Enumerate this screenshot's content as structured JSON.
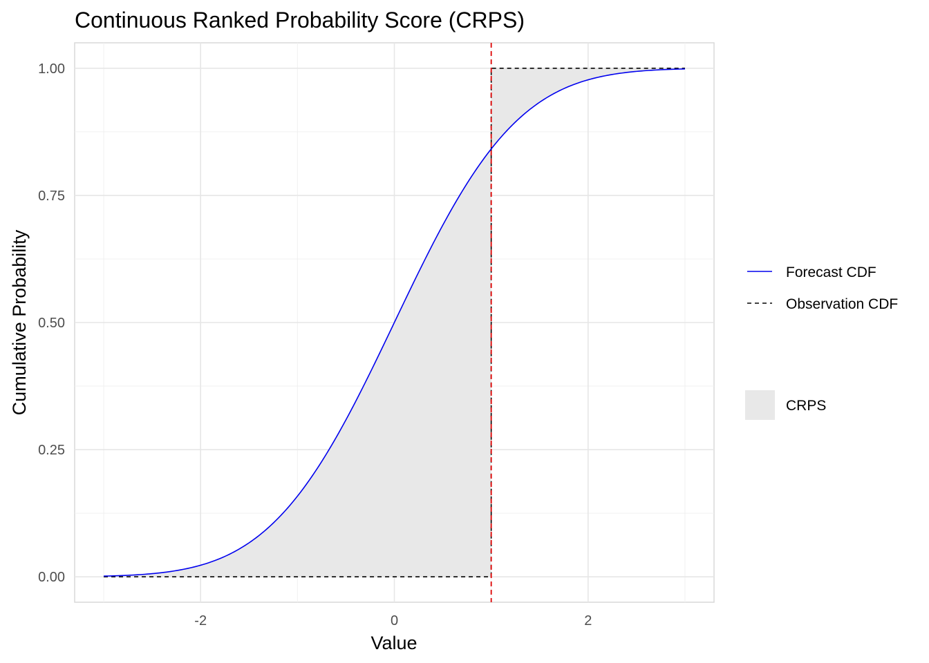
{
  "chart_data": {
    "type": "line",
    "title": "Continuous Ranked Probability Score (CRPS)",
    "xlabel": "Value",
    "ylabel": "Cumulative Probability",
    "xlim": [
      -3.3,
      3.3
    ],
    "ylim": [
      -0.05,
      1.05
    ],
    "x_ticks": [
      -2,
      0,
      2
    ],
    "x_tick_labels": [
      "-2",
      "0",
      "2"
    ],
    "y_ticks": [
      0,
      0.25,
      0.5,
      0.75,
      1.0
    ],
    "y_tick_labels": [
      "0.00",
      "0.25",
      "0.50",
      "0.75",
      "1.00"
    ],
    "grid": true,
    "observation": 1.0,
    "series": [
      {
        "name": "Forecast CDF",
        "style": "solid",
        "color": "#0000ee",
        "x": [
          -3.0,
          -2.75,
          -2.5,
          -2.25,
          -2.0,
          -1.75,
          -1.5,
          -1.25,
          -1.0,
          -0.75,
          -0.5,
          -0.25,
          0.0,
          0.25,
          0.5,
          0.75,
          1.0,
          1.25,
          1.5,
          1.75,
          2.0,
          2.25,
          2.5,
          2.75,
          3.0
        ],
        "y": [
          0.001,
          0.003,
          0.006,
          0.012,
          0.023,
          0.04,
          0.067,
          0.106,
          0.159,
          0.227,
          0.309,
          0.401,
          0.5,
          0.599,
          0.691,
          0.773,
          0.841,
          0.894,
          0.933,
          0.96,
          0.977,
          0.988,
          0.994,
          0.997,
          0.999
        ]
      },
      {
        "name": "Observation CDF",
        "style": "dashed",
        "color": "#000000",
        "x": [
          -3.0,
          1.0,
          1.0,
          3.0
        ],
        "y": [
          0.0,
          0.0,
          1.0,
          1.0
        ]
      }
    ],
    "area": {
      "name": "CRPS",
      "color": "#e8e8e8"
    },
    "vline": {
      "x": 1.0,
      "color": "#dd0000",
      "style": "dashed"
    },
    "legend": {
      "placement": "right",
      "items": [
        {
          "label": "Forecast CDF",
          "kind": "solid-line",
          "color": "#0000ee"
        },
        {
          "label": "Observation CDF",
          "kind": "dashed-line",
          "color": "#000000"
        },
        {
          "label": "CRPS",
          "kind": "fill",
          "color": "#e8e8e8"
        }
      ]
    }
  }
}
